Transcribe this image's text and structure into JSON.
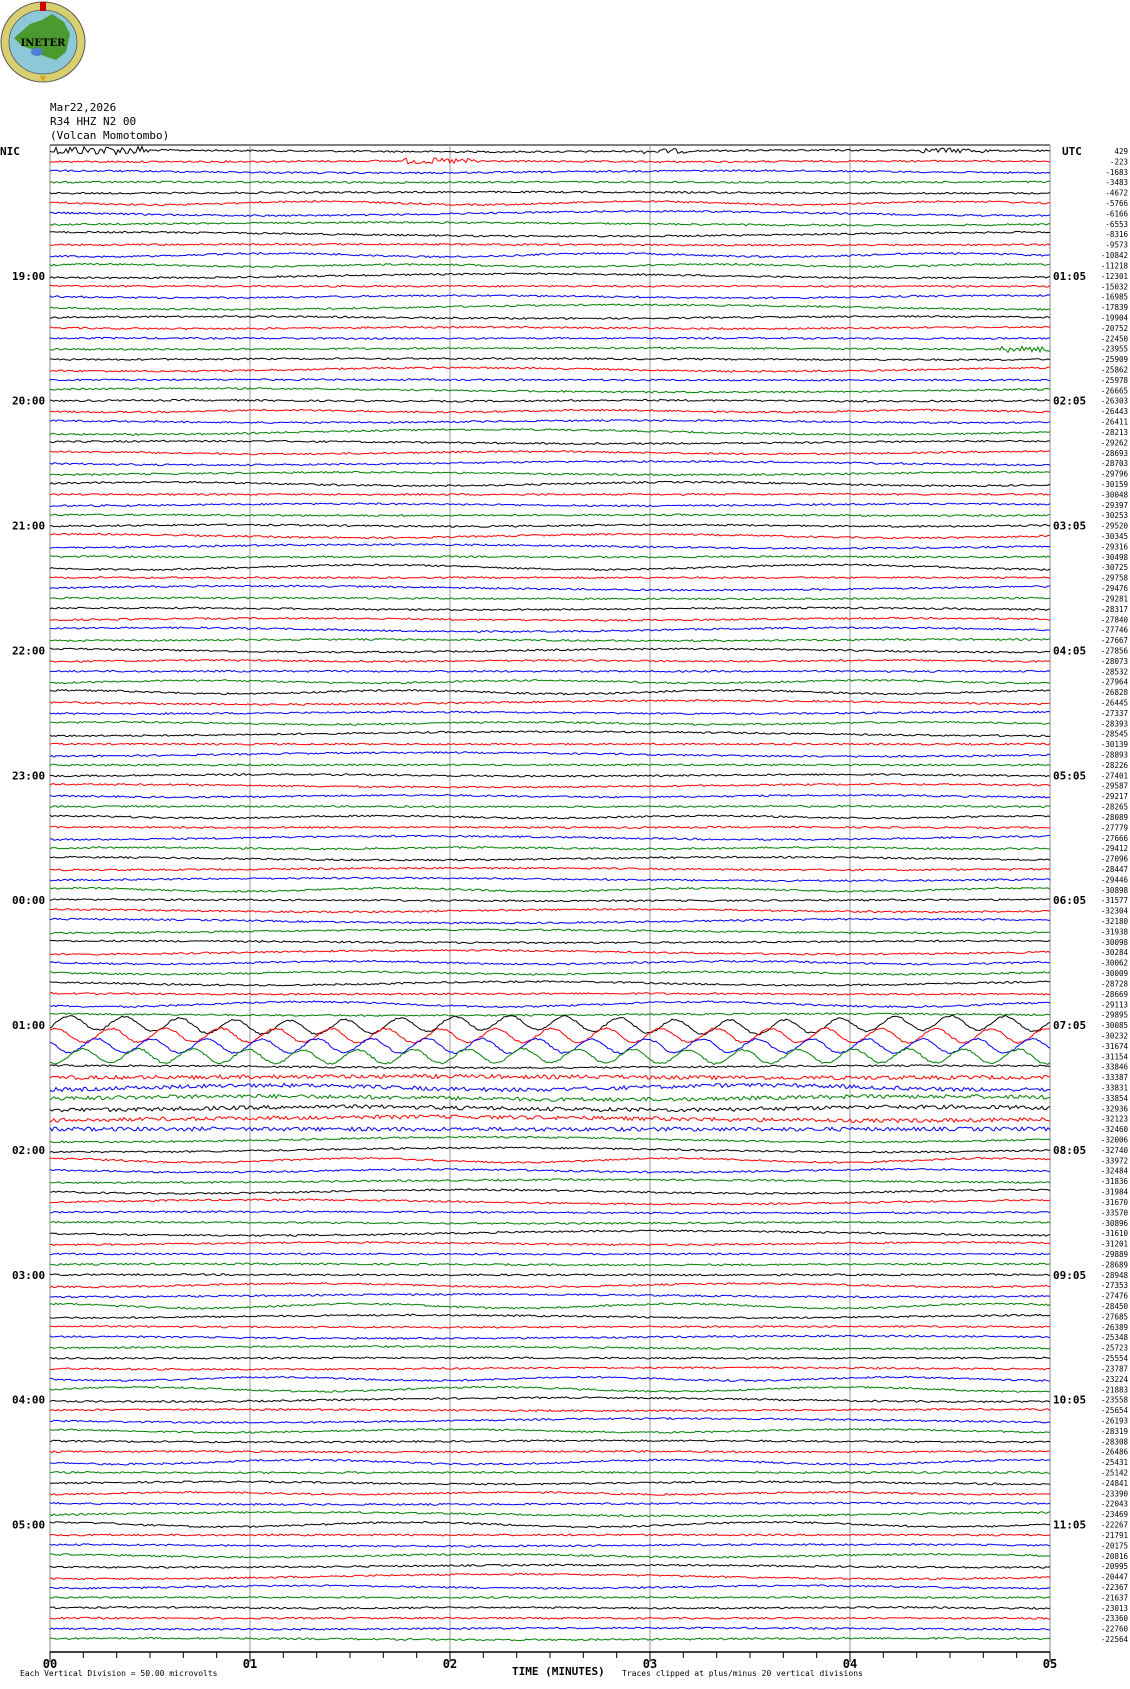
{
  "header": {
    "logo_text": "INETER",
    "date": "Mar22,2026",
    "station": "R34 HHZ N2 00",
    "location": "(Volcan Momotombo)"
  },
  "chart_data": {
    "type": "line",
    "title": "",
    "xlabel": "TIME (MINUTES)",
    "xlim": [
      0,
      5
    ],
    "x_tick_labels": [
      "00",
      "01",
      "02",
      "03",
      "04",
      "05"
    ],
    "left_timezone": "NIC",
    "right_timezone": "UTC",
    "left_hour_labels": [
      "19:00",
      "20:00",
      "21:00",
      "22:00",
      "23:00",
      "00:00",
      "01:00",
      "02:00",
      "03:00",
      "04:00",
      "05:00"
    ],
    "right_hour_labels": [
      "01:05",
      "02:05",
      "03:05",
      "04:05",
      "05:05",
      "06:05",
      "07:05",
      "08:05",
      "09:05",
      "10:05",
      "11:05"
    ],
    "trace_count": 144,
    "trace_colors": [
      "#000000",
      "#ff0000",
      "#0000ff",
      "#008000"
    ],
    "trace_offsets": [
      "429",
      "-223",
      "-1683",
      "-3483",
      "-4672",
      "-5766",
      "-6166",
      "-6553",
      "-8316",
      "-9573",
      "-10842",
      "-11218",
      "-12301",
      "-15032",
      "-16985",
      "-17839",
      "-19904",
      "-20752",
      "-22450",
      "-23955",
      "-25909",
      "-25862",
      "-25978",
      "-26665",
      "-26303",
      "-26443",
      "-26411",
      "-28213",
      "-29262",
      "-28693",
      "-28703",
      "-29796",
      "-30159",
      "-30048",
      "-29397",
      "-30253",
      "-29520",
      "-30345",
      "-29316",
      "-30498",
      "-30725",
      "-29758",
      "-29476",
      "-29281",
      "-28317",
      "-27840",
      "-27746",
      "-27667",
      "-27856",
      "-28073",
      "-28532",
      "-27964",
      "-26828",
      "-26445",
      "-27337",
      "-28393",
      "-28545",
      "-30139",
      "-28893",
      "-28226",
      "-27401",
      "-29587",
      "-29217",
      "-28265",
      "-28089",
      "-27779",
      "-27666",
      "-29412",
      "-27096",
      "-28447",
      "-29446",
      "-30898",
      "-31577",
      "-32304",
      "-32180",
      "-31938",
      "-30098",
      "-30284",
      "-30062",
      "-30009",
      "-28728",
      "-28669",
      "-29113",
      "-29895",
      "-30085",
      "-30232",
      "-31674",
      "-31154",
      "-33846",
      "-33387",
      "-33831",
      "-33854",
      "-32936",
      "-32123",
      "-32460",
      "-32006",
      "-32740",
      "-33972",
      "-32484",
      "-31836",
      "-31984",
      "-31670",
      "-33570",
      "-30896",
      "-31610",
      "-31201",
      "-29889",
      "-28689",
      "-28948",
      "-27353",
      "-27476",
      "-28450",
      "-27685",
      "-26389",
      "-25348",
      "-25723",
      "-25554",
      "-23787",
      "-23224",
      "-21883",
      "-23558",
      "-25654",
      "-26193",
      "-28319",
      "-28308",
      "-26486",
      "-25431",
      "-25142",
      "-24841",
      "-23390",
      "-22043",
      "-23469",
      "-22267",
      "-21791",
      "-20175",
      "-20816",
      "-20995",
      "-20447",
      "-22367",
      "-21637",
      "-23013",
      "-23360",
      "-22760",
      "-22564"
    ],
    "grid": "vertical lines at each minute",
    "scale_note": "Each Vertical Division =    50.00 microvolts",
    "clip_note": "Traces clipped at plus/minus 20 vertical divisions"
  }
}
